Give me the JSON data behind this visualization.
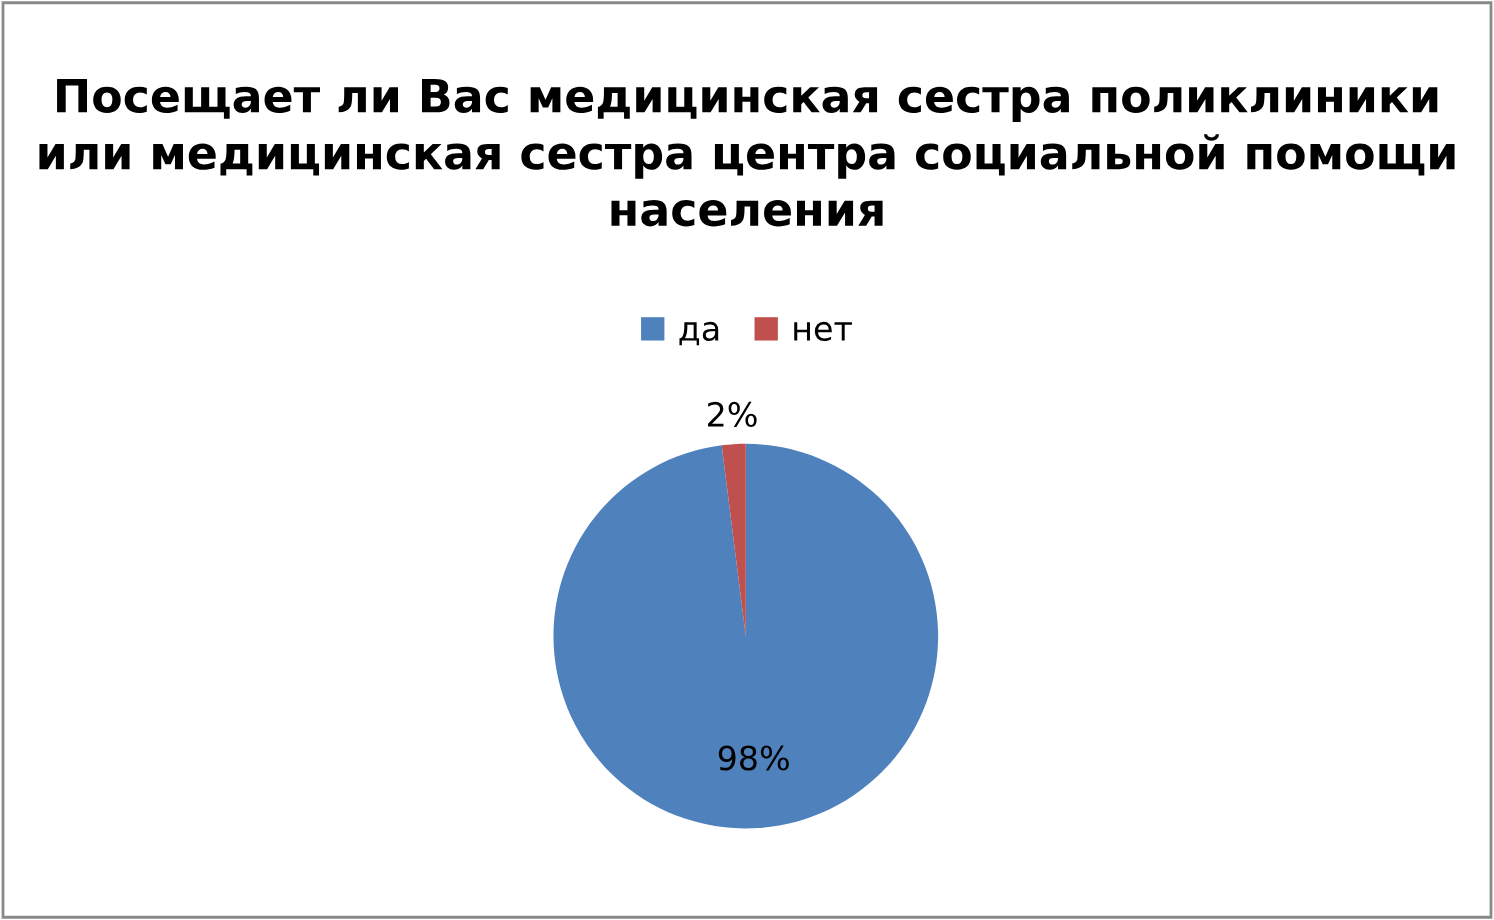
{
  "chart_data": {
    "type": "pie",
    "title": "Посещает ли Вас медицинская сестра поликлиники или медицинская сестра центра социальной помощи населения",
    "categories": [
      "да",
      "нет"
    ],
    "values": [
      98,
      2
    ],
    "colors": [
      "#4f81bd",
      "#c0504d"
    ],
    "value_labels": [
      "98%",
      "2%"
    ],
    "legend": "top"
  }
}
